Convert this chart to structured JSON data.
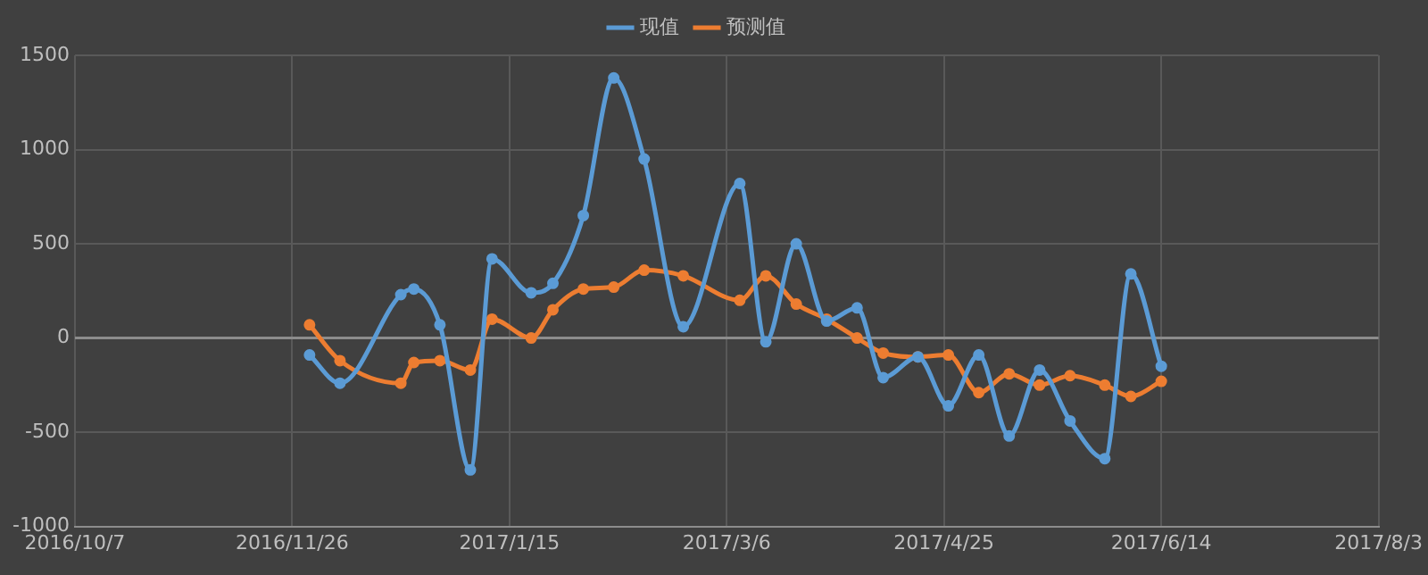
{
  "chart_data": {
    "type": "line",
    "x": [
      "2016-11-30",
      "2016-12-07",
      "2016-12-21",
      "2016-12-24",
      "2016-12-30",
      "2017-01-06",
      "2017-01-11",
      "2017-01-20",
      "2017-01-25",
      "2017-02-01",
      "2017-02-08",
      "2017-02-15",
      "2017-02-24",
      "2017-03-09",
      "2017-03-15",
      "2017-03-22",
      "2017-03-29",
      "2017-04-05",
      "2017-04-11",
      "2017-04-19",
      "2017-04-26",
      "2017-05-03",
      "2017-05-10",
      "2017-05-17",
      "2017-05-24",
      "2017-06-01",
      "2017-06-07",
      "2017-06-14"
    ],
    "series": [
      {
        "name": "现值",
        "color": "#5b9bd5",
        "values": [
          -90,
          -240,
          230,
          260,
          70,
          -700,
          420,
          240,
          290,
          650,
          1380,
          950,
          60,
          820,
          -20,
          500,
          90,
          160,
          -210,
          -100,
          -360,
          -90,
          -520,
          -170,
          -440,
          -640,
          340,
          -150
        ]
      },
      {
        "name": "预测值",
        "color": "#ed7d31",
        "values": [
          70,
          -120,
          -240,
          -130,
          -120,
          -170,
          100,
          0,
          150,
          260,
          270,
          360,
          330,
          200,
          330,
          180,
          100,
          0,
          -80,
          -100,
          -90,
          -290,
          -190,
          -250,
          -200,
          -250,
          -310,
          -230
        ]
      }
    ],
    "xlim": [
      "2016-10-07",
      "2017-08-03"
    ],
    "xticks": [
      {
        "value": "2016-10-07",
        "label": "2016/10/7"
      },
      {
        "value": "2016-11-26",
        "label": "2016/11/26"
      },
      {
        "value": "2017-01-15",
        "label": "2017/1/15"
      },
      {
        "value": "2017-03-06",
        "label": "2017/3/6"
      },
      {
        "value": "2017-04-25",
        "label": "2017/4/25"
      },
      {
        "value": "2017-06-14",
        "label": "2017/6/14"
      },
      {
        "value": "2017-08-03",
        "label": "2017/8/3"
      }
    ],
    "ylim": [
      -1000,
      1500
    ],
    "yticks": [
      -1000,
      -500,
      0,
      500,
      1000,
      1500
    ],
    "grid": true,
    "legend": "top",
    "marker": "circle",
    "line_style": "solid"
  }
}
